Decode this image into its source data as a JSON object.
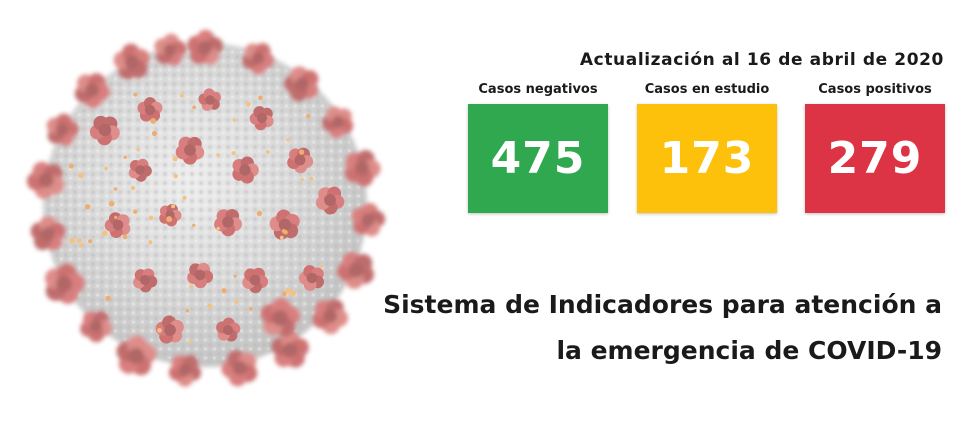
{
  "header": {
    "update_text": "Actualización al 16 de abril de 2020"
  },
  "indicators": [
    {
      "label": "Casos negativos",
      "value": "475",
      "color": "#2fa84f"
    },
    {
      "label": "Casos en estudio",
      "value": "173",
      "color": "#fdc10c"
    },
    {
      "label": "Casos positivos",
      "value": "279",
      "color": "#dc3444"
    }
  ],
  "title": {
    "line1": "Sistema de Indicadores para atención a",
    "line2": "la emergencia de COVID-19"
  },
  "illustration": {
    "icon": "coronavirus-illustration"
  }
}
